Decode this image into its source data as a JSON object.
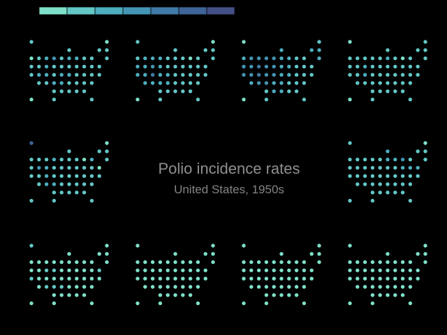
{
  "chart_data": {
    "type": "tile-map-small-multiples",
    "title": "Polio incidence rates",
    "subtitle": "United States, 1950s",
    "legend": {
      "position": "top-left",
      "scale": "sequential",
      "swatches": [
        "#7ee0c8",
        "#63c7c6",
        "#4daebf",
        "#4494b4",
        "#3f7ba6",
        "#3f6497",
        "#434f87"
      ]
    },
    "panel_order": [
      "top-1",
      "top-2",
      "top-3",
      "top-4",
      "middle-left",
      "middle-right",
      "bottom-1",
      "bottom-2",
      "bottom-3",
      "bottom-4"
    ],
    "tile_grid": [
      [
        0,
        0
      ],
      [
        10,
        0
      ],
      [
        5,
        1
      ],
      [
        9,
        1
      ],
      [
        10,
        1
      ],
      [
        0,
        2
      ],
      [
        1,
        2
      ],
      [
        2,
        2
      ],
      [
        3,
        2
      ],
      [
        4,
        2
      ],
      [
        5,
        2
      ],
      [
        6,
        2
      ],
      [
        7,
        2
      ],
      [
        8,
        2
      ],
      [
        10,
        2
      ],
      [
        0,
        3
      ],
      [
        1,
        3
      ],
      [
        2,
        3
      ],
      [
        3,
        3
      ],
      [
        4,
        3
      ],
      [
        5,
        3
      ],
      [
        6,
        3
      ],
      [
        7,
        3
      ],
      [
        8,
        3
      ],
      [
        9,
        3
      ],
      [
        0,
        4
      ],
      [
        1,
        4
      ],
      [
        2,
        4
      ],
      [
        3,
        4
      ],
      [
        4,
        4
      ],
      [
        5,
        4
      ],
      [
        6,
        4
      ],
      [
        7,
        4
      ],
      [
        8,
        4
      ],
      [
        9,
        4
      ],
      [
        1,
        5
      ],
      [
        2,
        5
      ],
      [
        3,
        5
      ],
      [
        4,
        5
      ],
      [
        5,
        5
      ],
      [
        6,
        5
      ],
      [
        7,
        5
      ],
      [
        8,
        5
      ],
      [
        3,
        6
      ],
      [
        4,
        6
      ],
      [
        5,
        6
      ],
      [
        6,
        6
      ],
      [
        7,
        6
      ],
      [
        0,
        7
      ],
      [
        3,
        7
      ],
      [
        8,
        7
      ]
    ],
    "levels": [
      [
        1,
        0,
        1,
        1,
        1,
        0,
        1,
        2,
        3,
        1,
        2,
        2,
        1,
        1,
        1,
        1,
        1,
        2,
        1,
        1,
        1,
        1,
        1,
        1,
        1,
        1,
        2,
        2,
        1,
        2,
        2,
        1,
        1,
        1,
        1,
        1,
        1,
        2,
        2,
        1,
        1,
        1,
        1,
        1,
        1,
        1,
        1,
        1,
        0,
        1,
        1
      ],
      [
        1,
        0,
        1,
        1,
        1,
        1,
        2,
        2,
        2,
        1,
        1,
        1,
        0,
        1,
        1,
        2,
        2,
        3,
        2,
        1,
        1,
        1,
        1,
        1,
        1,
        2,
        2,
        4,
        2,
        2,
        1,
        1,
        1,
        1,
        1,
        2,
        2,
        2,
        2,
        1,
        1,
        1,
        1,
        1,
        1,
        1,
        1,
        1,
        0,
        1,
        1
      ],
      [
        0,
        1,
        2,
        2,
        2,
        2,
        3,
        3,
        3,
        3,
        2,
        2,
        1,
        1,
        2,
        3,
        3,
        4,
        3,
        3,
        2,
        2,
        1,
        1,
        1,
        3,
        3,
        4,
        3,
        3,
        2,
        2,
        1,
        1,
        1,
        2,
        3,
        3,
        2,
        2,
        1,
        1,
        1,
        1,
        2,
        2,
        1,
        1,
        0,
        1,
        1
      ],
      [
        0,
        1,
        1,
        1,
        1,
        1,
        1,
        1,
        1,
        1,
        2,
        1,
        0,
        1,
        1,
        1,
        1,
        2,
        1,
        1,
        1,
        1,
        1,
        1,
        1,
        1,
        1,
        2,
        1,
        1,
        1,
        1,
        1,
        1,
        1,
        1,
        1,
        1,
        1,
        1,
        1,
        1,
        1,
        1,
        1,
        1,
        1,
        1,
        0,
        1,
        1
      ],
      [
        5,
        0,
        1,
        1,
        1,
        1,
        1,
        1,
        2,
        1,
        1,
        1,
        0,
        2,
        1,
        1,
        3,
        2,
        1,
        1,
        1,
        1,
        1,
        1,
        0,
        1,
        1,
        2,
        1,
        1,
        1,
        1,
        1,
        1,
        1,
        1,
        2,
        2,
        1,
        1,
        1,
        1,
        1,
        1,
        1,
        1,
        1,
        1,
        1,
        1,
        1
      ],
      [
        1,
        0,
        2,
        1,
        1,
        1,
        1,
        1,
        1,
        1,
        2,
        2,
        3,
        1,
        1,
        1,
        1,
        1,
        1,
        1,
        1,
        1,
        2,
        2,
        2,
        1,
        1,
        1,
        1,
        1,
        1,
        1,
        1,
        1,
        1,
        1,
        1,
        1,
        1,
        1,
        1,
        1,
        1,
        1,
        1,
        1,
        1,
        1,
        1,
        1,
        1
      ],
      [
        1,
        0,
        0,
        0,
        0,
        0,
        0,
        0,
        0,
        0,
        0,
        0,
        0,
        0,
        0,
        0,
        0,
        1,
        1,
        0,
        0,
        0,
        0,
        0,
        1,
        1,
        0,
        0,
        0,
        0,
        0,
        0,
        0,
        0,
        0,
        0,
        1,
        1,
        1,
        0,
        0,
        0,
        0,
        0,
        0,
        0,
        0,
        0,
        0,
        0,
        0
      ],
      [
        0,
        0,
        0,
        0,
        0,
        0,
        0,
        0,
        0,
        0,
        0,
        0,
        0,
        0,
        0,
        0,
        0,
        0,
        0,
        0,
        0,
        0,
        0,
        0,
        0,
        0,
        0,
        0,
        0,
        0,
        0,
        0,
        0,
        0,
        0,
        0,
        0,
        0,
        0,
        0,
        0,
        0,
        0,
        0,
        0,
        0,
        0,
        0,
        0,
        0,
        0
      ],
      [
        0,
        0,
        0,
        0,
        0,
        0,
        0,
        0,
        0,
        0,
        0,
        0,
        0,
        0,
        0,
        0,
        0,
        0,
        0,
        0,
        0,
        0,
        0,
        0,
        0,
        0,
        0,
        0,
        0,
        0,
        0,
        0,
        0,
        0,
        0,
        0,
        0,
        0,
        0,
        0,
        0,
        0,
        0,
        0,
        0,
        0,
        0,
        0,
        0,
        0,
        0
      ],
      [
        0,
        0,
        0,
        0,
        0,
        0,
        0,
        0,
        0,
        0,
        0,
        0,
        0,
        0,
        0,
        0,
        0,
        0,
        0,
        0,
        0,
        0,
        0,
        0,
        0,
        0,
        0,
        0,
        0,
        0,
        0,
        0,
        0,
        0,
        0,
        0,
        0,
        0,
        0,
        0,
        0,
        0,
        0,
        0,
        0,
        0,
        0,
        0,
        0,
        0,
        0
      ]
    ]
  }
}
